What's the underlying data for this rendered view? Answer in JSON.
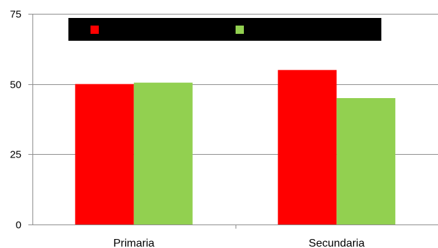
{
  "chart_data": {
    "type": "bar",
    "title": "",
    "xlabel": "",
    "ylabel": "",
    "categories": [
      "Primaria",
      "Secundaria"
    ],
    "ylim": [
      0,
      75
    ],
    "yticks": [
      0,
      25,
      50,
      75
    ],
    "grid": true,
    "legend_position": "top",
    "legend_redacted": true,
    "series": [
      {
        "values": [
          50,
          55
        ],
        "color": "#ff0000"
      },
      {
        "values": [
          50.5,
          45
        ],
        "color": "#92d050"
      }
    ]
  }
}
